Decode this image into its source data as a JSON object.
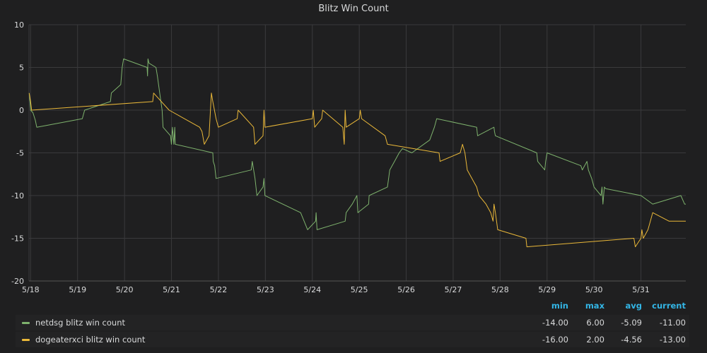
{
  "chart_data": {
    "type": "line",
    "title": "Blitz Win Count",
    "ylim": [
      -20,
      10
    ],
    "y_ticks": [
      10,
      5,
      0,
      -5,
      -10,
      -15,
      -20
    ],
    "x_ticks": [
      "5/18",
      "5/19",
      "5/20",
      "5/21",
      "5/22",
      "5/23",
      "5/24",
      "5/25",
      "5/26",
      "5/27",
      "5/28",
      "5/29",
      "5/30",
      "5/31"
    ],
    "x_unit_note_days": "x values are days in May",
    "xlim": [
      17.95,
      31.95
    ],
    "grid": true,
    "legend_position": "bottom",
    "series": [
      {
        "name": "netdsg blitz win count",
        "color": "#7eb26d",
        "points": [
          [
            17.97,
            2
          ],
          [
            18.0,
            0
          ],
          [
            18.05,
            -0.3
          ],
          [
            18.1,
            -1.2
          ],
          [
            18.13,
            -2
          ],
          [
            19.1,
            -1
          ],
          [
            19.15,
            0
          ],
          [
            19.7,
            1
          ],
          [
            19.72,
            2
          ],
          [
            19.92,
            3
          ],
          [
            19.95,
            5
          ],
          [
            19.98,
            6
          ],
          [
            20.48,
            5
          ],
          [
            20.49,
            4
          ],
          [
            20.5,
            6
          ],
          [
            20.52,
            5.5
          ],
          [
            20.67,
            5
          ],
          [
            20.7,
            4
          ],
          [
            20.75,
            2
          ],
          [
            20.8,
            0
          ],
          [
            20.82,
            -2
          ],
          [
            20.98,
            -3
          ],
          [
            21.0,
            -4
          ],
          [
            21.02,
            -2
          ],
          [
            21.05,
            -4
          ],
          [
            21.07,
            -2
          ],
          [
            21.08,
            -4
          ],
          [
            21.88,
            -5
          ],
          [
            21.89,
            -6
          ],
          [
            21.92,
            -6.5
          ],
          [
            21.95,
            -8
          ],
          [
            22.7,
            -7
          ],
          [
            22.72,
            -6
          ],
          [
            22.78,
            -8
          ],
          [
            22.82,
            -10
          ],
          [
            22.95,
            -9
          ],
          [
            22.97,
            -8
          ],
          [
            22.99,
            -10
          ],
          [
            23.75,
            -12
          ],
          [
            23.9,
            -14
          ],
          [
            24.07,
            -13
          ],
          [
            24.08,
            -12
          ],
          [
            24.1,
            -14
          ],
          [
            24.7,
            -13
          ],
          [
            24.72,
            -12
          ],
          [
            24.85,
            -11
          ],
          [
            24.95,
            -10
          ],
          [
            24.97,
            -12
          ],
          [
            25.2,
            -11
          ],
          [
            25.21,
            -10
          ],
          [
            25.6,
            -9
          ],
          [
            25.65,
            -7
          ],
          [
            25.75,
            -6
          ],
          [
            25.85,
            -5
          ],
          [
            25.92,
            -4.5
          ],
          [
            26.12,
            -5
          ],
          [
            26.5,
            -3.5
          ],
          [
            26.6,
            -2
          ],
          [
            26.65,
            -1
          ],
          [
            27.5,
            -2
          ],
          [
            27.52,
            -3
          ],
          [
            27.87,
            -2
          ],
          [
            27.88,
            -2.5
          ],
          [
            27.9,
            -3
          ],
          [
            28.78,
            -5
          ],
          [
            28.8,
            -6
          ],
          [
            28.95,
            -7
          ],
          [
            28.97,
            -6
          ],
          [
            29.0,
            -5
          ],
          [
            29.72,
            -6.5
          ],
          [
            29.75,
            -7
          ],
          [
            29.85,
            -6
          ],
          [
            29.88,
            -7
          ],
          [
            29.95,
            -8
          ],
          [
            30.0,
            -9
          ],
          [
            30.15,
            -10
          ],
          [
            30.17,
            -9
          ],
          [
            30.19,
            -11
          ],
          [
            30.22,
            -9
          ],
          [
            30.25,
            -9.2
          ],
          [
            31.0,
            -10
          ],
          [
            31.25,
            -11
          ],
          [
            31.85,
            -10
          ],
          [
            31.93,
            -11
          ],
          [
            32.0,
            -11
          ]
        ]
      },
      {
        "name": "dogeaterxci blitz win count",
        "color": "#eab839",
        "points": [
          [
            17.97,
            2
          ],
          [
            18.0,
            1
          ],
          [
            18.02,
            0
          ],
          [
            20.6,
            1
          ],
          [
            20.62,
            2
          ],
          [
            20.95,
            0
          ],
          [
            21.6,
            -2
          ],
          [
            21.65,
            -2.5
          ],
          [
            21.7,
            -4
          ],
          [
            21.8,
            -3
          ],
          [
            21.85,
            2
          ],
          [
            21.88,
            1
          ],
          [
            21.95,
            -1
          ],
          [
            22.0,
            -2
          ],
          [
            22.4,
            -1
          ],
          [
            22.42,
            0
          ],
          [
            22.75,
            -2
          ],
          [
            22.78,
            -4
          ],
          [
            22.95,
            -3
          ],
          [
            22.97,
            0
          ],
          [
            22.99,
            -2
          ],
          [
            24.0,
            -1
          ],
          [
            24.02,
            0
          ],
          [
            24.05,
            -2
          ],
          [
            24.2,
            -1
          ],
          [
            24.22,
            0
          ],
          [
            24.65,
            -2
          ],
          [
            24.68,
            -4
          ],
          [
            24.7,
            0
          ],
          [
            24.72,
            -2
          ],
          [
            25.0,
            -1
          ],
          [
            25.02,
            0
          ],
          [
            25.05,
            -1
          ],
          [
            25.55,
            -3
          ],
          [
            25.6,
            -4
          ],
          [
            26.7,
            -5
          ],
          [
            26.72,
            -6
          ],
          [
            27.15,
            -5
          ],
          [
            27.2,
            -4
          ],
          [
            27.25,
            -5
          ],
          [
            27.3,
            -7
          ],
          [
            27.4,
            -8
          ],
          [
            27.5,
            -9
          ],
          [
            27.55,
            -10
          ],
          [
            27.7,
            -11
          ],
          [
            27.8,
            -12
          ],
          [
            27.85,
            -13
          ],
          [
            27.87,
            -11
          ],
          [
            27.9,
            -12
          ],
          [
            27.95,
            -14
          ],
          [
            28.55,
            -15
          ],
          [
            28.57,
            -16
          ],
          [
            30.85,
            -15
          ],
          [
            30.88,
            -16
          ],
          [
            31.0,
            -15
          ],
          [
            31.02,
            -14
          ],
          [
            31.05,
            -15
          ],
          [
            31.15,
            -14
          ],
          [
            31.2,
            -13
          ],
          [
            31.25,
            -12
          ],
          [
            31.6,
            -13
          ],
          [
            31.65,
            -13
          ],
          [
            32.0,
            -13
          ]
        ]
      }
    ]
  },
  "legend": {
    "headers": {
      "min": "min",
      "max": "max",
      "avg": "avg",
      "current": "current"
    },
    "rows": [
      {
        "name": "netdsg blitz win count",
        "color": "#7eb26d",
        "min": "-14.00",
        "max": "6.00",
        "avg": "-5.09",
        "current": "-11.00"
      },
      {
        "name": "dogeaterxci blitz win count",
        "color": "#eab839",
        "min": "-16.00",
        "max": "2.00",
        "avg": "-4.56",
        "current": "-13.00"
      }
    ]
  }
}
